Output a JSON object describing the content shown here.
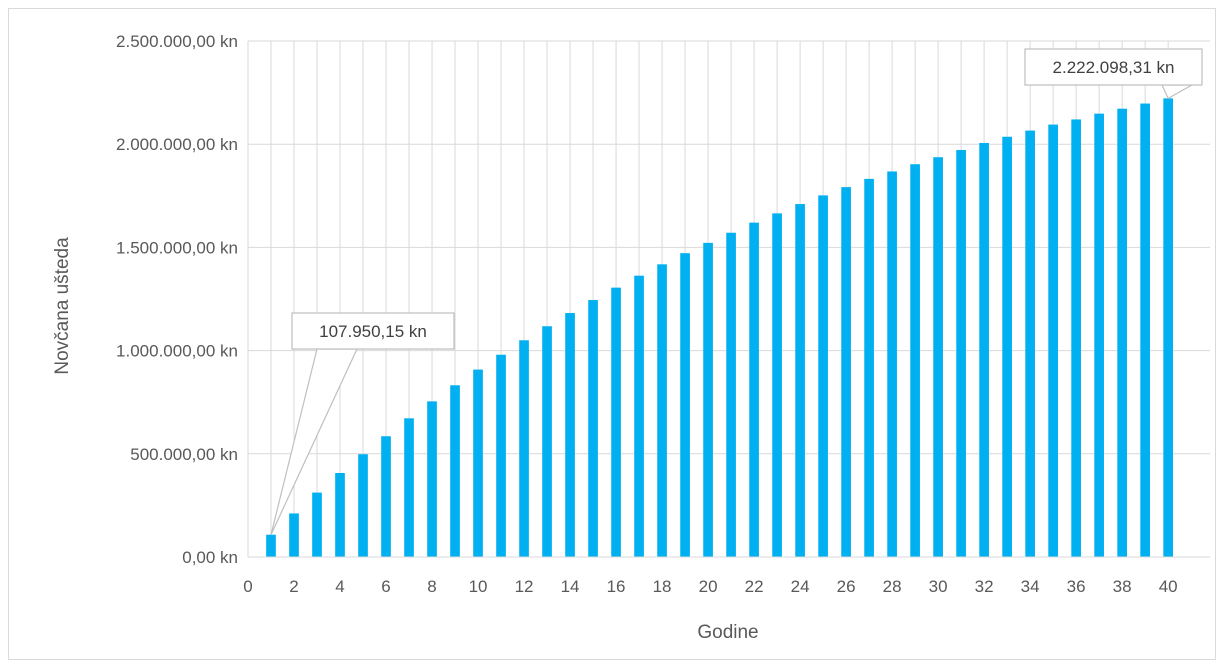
{
  "chart_data": {
    "type": "bar",
    "xlabel": "Godine",
    "ylabel": "Novčana ušteda",
    "x": [
      1,
      2,
      3,
      4,
      5,
      6,
      7,
      8,
      9,
      10,
      11,
      12,
      13,
      14,
      15,
      16,
      17,
      18,
      19,
      20,
      21,
      22,
      23,
      24,
      25,
      26,
      27,
      28,
      29,
      30,
      31,
      32,
      33,
      34,
      35,
      36,
      37,
      38,
      39,
      40
    ],
    "values": [
      107950.15,
      211000,
      312000,
      407000,
      498000,
      585000,
      672000,
      754000,
      832000,
      908000,
      980000,
      1050000,
      1118000,
      1182000,
      1245000,
      1305000,
      1363000,
      1418000,
      1472000,
      1522000,
      1571000,
      1620000,
      1665000,
      1710000,
      1752000,
      1792000,
      1832000,
      1868000,
      1903000,
      1937000,
      1972000,
      2006000,
      2036000,
      2066000,
      2095000,
      2120000,
      2148000,
      2172000,
      2197000,
      2222098.31
    ],
    "xlim": [
      0,
      40
    ],
    "ylim": [
      0,
      2500000
    ],
    "x_ticks": [
      "0",
      "2",
      "4",
      "6",
      "8",
      "10",
      "12",
      "14",
      "16",
      "18",
      "20",
      "22",
      "24",
      "26",
      "28",
      "30",
      "32",
      "34",
      "36",
      "38",
      "40"
    ],
    "y_ticks": [
      "0,00 kn",
      "500.000,00 kn",
      "1.000.000,00 kn",
      "1.500.000,00 kn",
      "2.000.000,00 kn",
      "2.500.000,00 kn"
    ],
    "annotations": [
      {
        "text": "107.950,15 kn",
        "x": 1,
        "y": 107950.15
      },
      {
        "text": "2.222.098,31 kn",
        "x": 40,
        "y": 2222098.31
      }
    ],
    "grid": true,
    "colors": {
      "bar": "#00B0F0",
      "grid": "#d9d9d9",
      "callout_border": "#bfbfbf"
    }
  }
}
